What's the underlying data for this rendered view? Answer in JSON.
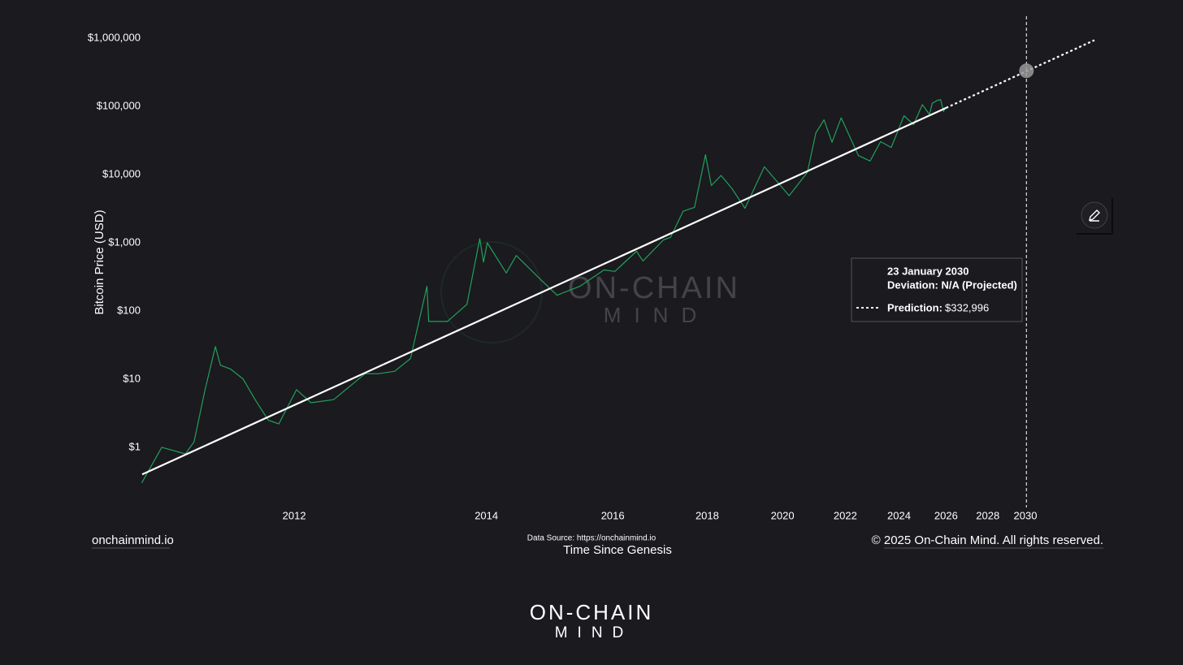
{
  "chart_data": {
    "type": "line",
    "x_scale": "log",
    "y_scale": "log",
    "x_label": "Time Since Genesis",
    "y_label": "Bitcoin Price (USD)",
    "xlim": [
      729,
      9217
    ],
    "ylim": [
      0.26,
      2100000
    ],
    "xticks": [
      {
        "value": 1093,
        "label": "2012"
      },
      {
        "value": 1824,
        "label": "2014"
      },
      {
        "value": 2554,
        "label": "2016"
      },
      {
        "value": 3285,
        "label": "2018"
      },
      {
        "value": 4015,
        "label": "2020"
      },
      {
        "value": 4746,
        "label": "2022"
      },
      {
        "value": 5476,
        "label": "2024"
      },
      {
        "value": 6207,
        "label": "2026"
      },
      {
        "value": 6937,
        "label": "2028"
      },
      {
        "value": 7668,
        "label": "2030"
      }
    ],
    "yticks": [
      {
        "value": 1,
        "label": "$1"
      },
      {
        "value": 10,
        "label": "$10"
      },
      {
        "value": 100,
        "label": "$100"
      },
      {
        "value": 1000,
        "label": "$1,000"
      },
      {
        "value": 10000,
        "label": "$10,000"
      },
      {
        "value": 100000,
        "label": "$100,000"
      },
      {
        "value": 1000000,
        "label": "$1,000,000"
      }
    ],
    "series": [
      {
        "color": "#22a05a",
        "dashed": false,
        "x": [
          728,
          768,
          818,
          837,
          862,
          886,
          898,
          923,
          954,
          985,
          1020,
          1049,
          1100,
          1143,
          1214,
          1320,
          1367,
          1428,
          1490,
          1557,
          1564,
          1644,
          1732,
          1792,
          1810,
          1828,
          1923,
          1975,
          2101,
          2202,
          2340,
          2496,
          2568,
          2721,
          2768,
          2923,
          2979,
          3081,
          3176,
          3270,
          3321,
          3409,
          3510,
          3633,
          3826,
          4001,
          4087,
          4290,
          4388,
          4484,
          4581,
          4694,
          4914,
          5070,
          5214,
          5364,
          5549,
          5693,
          5827,
          5939,
          5983,
          6067,
          6120,
          6166,
          6185
        ],
        "values": [
          0.3,
          1.0,
          0.8,
          1.2,
          7,
          30,
          16,
          14,
          10,
          5,
          2.5,
          2.2,
          7,
          4.5,
          5,
          12,
          12,
          13,
          20,
          230,
          70,
          70,
          125,
          1150,
          520,
          1000,
          360,
          650,
          300,
          170,
          230,
          400,
          380,
          750,
          540,
          1100,
          1200,
          2900,
          3300,
          19500,
          6900,
          9700,
          6200,
          3200,
          13000,
          6700,
          4900,
          10800,
          41000,
          63500,
          29800,
          68000,
          19000,
          15800,
          30400,
          25000,
          73000,
          54000,
          106000,
          76000,
          111000,
          123000,
          125000,
          84000,
          92000
        ]
      },
      {
        "color": "#ffffff",
        "dashed": false,
        "x": [
          729,
          6207
        ],
        "values": [
          0.4,
          95000
        ]
      },
      {
        "color": "#ffffff",
        "dashed": true,
        "x": [
          6207,
          9217
        ],
        "values": [
          95000,
          935000
        ]
      }
    ],
    "hover": {
      "date": "23 January 2030",
      "x": 7690,
      "deviation": "Deviation: N/A (Projected)",
      "prediction_label": "Prediction:",
      "prediction": {
        "value": 332996,
        "label": "$332,996"
      }
    }
  },
  "site": "onchainmind.io",
  "source": "Data Source: https://onchainmind.io",
  "copyright": "© 2025 On-Chain Mind. All rights reserved.",
  "logo": {
    "line1": "ON-CHAIN",
    "line2": "MIND"
  }
}
